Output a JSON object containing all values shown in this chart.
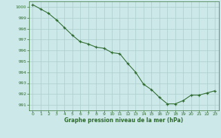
{
  "x": [
    0,
    1,
    2,
    3,
    4,
    5,
    6,
    7,
    8,
    9,
    10,
    11,
    12,
    13,
    14,
    15,
    16,
    17,
    18,
    19,
    20,
    21,
    22,
    23
  ],
  "y": [
    1000.2,
    999.8,
    999.4,
    998.8,
    998.1,
    997.4,
    996.8,
    996.6,
    996.3,
    996.2,
    995.8,
    995.7,
    994.8,
    994.0,
    992.9,
    992.4,
    991.7,
    991.1,
    991.1,
    991.4,
    991.9,
    991.9,
    992.1,
    992.3
  ],
  "line_color": "#2d6a2d",
  "marker_color": "#2d6a2d",
  "bg_color": "#cce8e8",
  "grid_color": "#aacccc",
  "xlabel": "Graphe pression niveau de la mer (hPa)",
  "ylim": [
    990.5,
    1000.5
  ],
  "xlim": [
    -0.5,
    23.5
  ],
  "yticks": [
    991,
    992,
    993,
    994,
    995,
    996,
    997,
    998,
    999,
    1000
  ],
  "xticks": [
    0,
    1,
    2,
    3,
    4,
    5,
    6,
    7,
    8,
    9,
    10,
    11,
    12,
    13,
    14,
    15,
    16,
    17,
    18,
    19,
    20,
    21,
    22,
    23
  ]
}
